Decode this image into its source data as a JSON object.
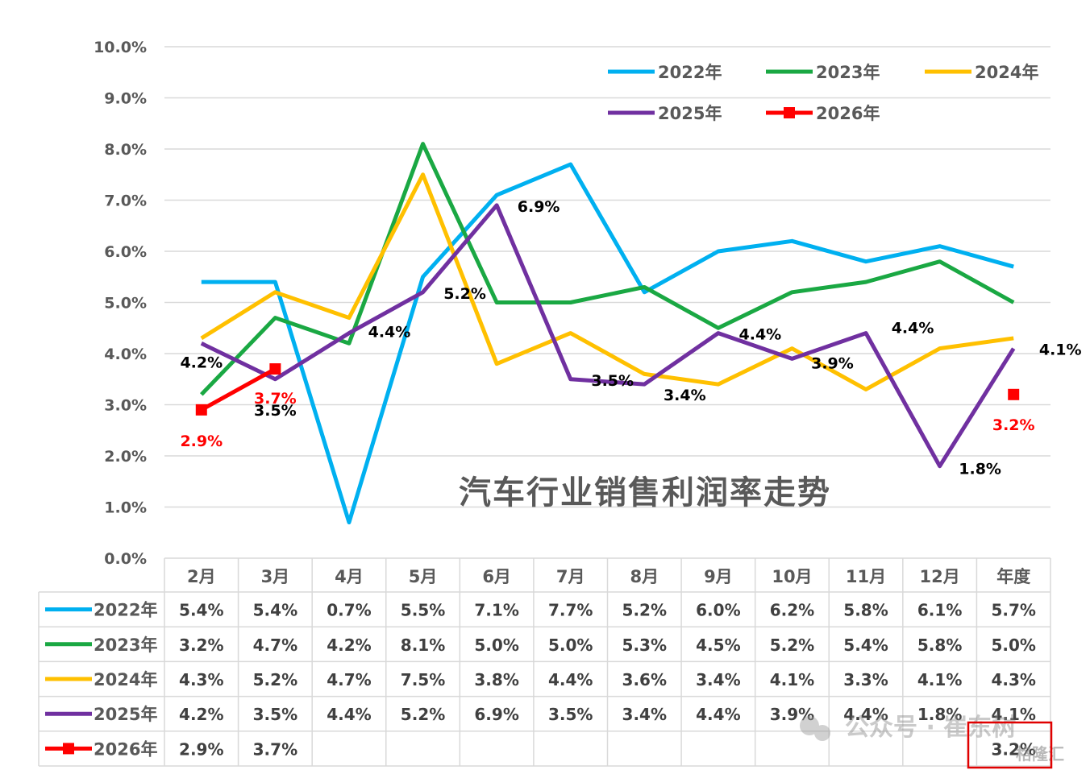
{
  "chart_data": {
    "type": "line",
    "title": "汽车行业销售利润率走势",
    "categories": [
      "2月",
      "3月",
      "4月",
      "5月",
      "6月",
      "7月",
      "8月",
      "9月",
      "10月",
      "11月",
      "12月",
      "年度"
    ],
    "ylim": [
      0,
      10
    ],
    "yticks": [
      "0.0%",
      "1.0%",
      "2.0%",
      "3.0%",
      "4.0%",
      "5.0%",
      "6.0%",
      "7.0%",
      "8.0%",
      "9.0%",
      "10.0%"
    ],
    "grid": true,
    "legend_position": "top-right",
    "series": [
      {
        "name": "2022年",
        "color": "#00B0F0",
        "marker": "none",
        "values": [
          5.4,
          5.4,
          0.7,
          5.5,
          7.1,
          7.7,
          5.2,
          6.0,
          6.2,
          5.8,
          6.1,
          5.7
        ],
        "table": [
          "5.4%",
          "5.4%",
          "0.7%",
          "5.5%",
          "7.1%",
          "7.7%",
          "5.2%",
          "6.0%",
          "6.2%",
          "5.8%",
          "6.1%",
          "5.7%"
        ]
      },
      {
        "name": "2023年",
        "color": "#1AA843",
        "marker": "none",
        "values": [
          3.2,
          4.7,
          4.2,
          8.1,
          5.0,
          5.0,
          5.3,
          4.5,
          5.2,
          5.4,
          5.8,
          5.0
        ],
        "table": [
          "3.2%",
          "4.7%",
          "4.2%",
          "8.1%",
          "5.0%",
          "5.0%",
          "5.3%",
          "4.5%",
          "5.2%",
          "5.4%",
          "5.8%",
          "5.0%"
        ]
      },
      {
        "name": "2024年",
        "color": "#FFC000",
        "marker": "none",
        "values": [
          4.3,
          5.2,
          4.7,
          7.5,
          3.8,
          4.4,
          3.6,
          3.4,
          4.1,
          3.3,
          4.1,
          4.3
        ],
        "table": [
          "4.3%",
          "5.2%",
          "4.7%",
          "7.5%",
          "3.8%",
          "4.4%",
          "3.6%",
          "3.4%",
          "4.1%",
          "3.3%",
          "4.1%",
          "4.3%"
        ]
      },
      {
        "name": "2025年",
        "color": "#7030A0",
        "marker": "none",
        "values": [
          4.2,
          3.5,
          4.4,
          5.2,
          6.9,
          3.5,
          3.4,
          4.4,
          3.9,
          4.4,
          1.8,
          4.1
        ],
        "table": [
          "4.2%",
          "3.5%",
          "4.4%",
          "5.2%",
          "6.9%",
          "3.5%",
          "3.4%",
          "4.4%",
          "3.9%",
          "4.4%",
          "1.8%",
          "4.1%"
        ]
      },
      {
        "name": "2026年",
        "color": "#FF0000",
        "marker": "square",
        "values": [
          2.9,
          3.7,
          null,
          null,
          null,
          null,
          null,
          null,
          null,
          null,
          null,
          3.2
        ],
        "table": [
          "2.9%",
          "3.7%",
          "",
          "",
          "",
          "",
          "",
          "",
          "",
          "",
          "",
          "3.2%"
        ]
      }
    ],
    "data_labels": [
      {
        "series": 3,
        "index": 0,
        "text": "4.2%",
        "color": "#000000"
      },
      {
        "series": 3,
        "index": 1,
        "text": "3.5%",
        "color": "#000000"
      },
      {
        "series": 3,
        "index": 2,
        "text": "4.4%",
        "color": "#000000"
      },
      {
        "series": 3,
        "index": 3,
        "text": "5.2%",
        "color": "#000000"
      },
      {
        "series": 3,
        "index": 4,
        "text": "6.9%",
        "color": "#000000"
      },
      {
        "series": 3,
        "index": 5,
        "text": "3.5%",
        "color": "#000000"
      },
      {
        "series": 3,
        "index": 6,
        "text": "3.4%",
        "color": "#000000"
      },
      {
        "series": 3,
        "index": 7,
        "text": "4.4%",
        "color": "#000000"
      },
      {
        "series": 3,
        "index": 8,
        "text": "3.9%",
        "color": "#000000"
      },
      {
        "series": 3,
        "index": 9,
        "text": "4.4%",
        "color": "#000000"
      },
      {
        "series": 3,
        "index": 10,
        "text": "1.8%",
        "color": "#000000"
      },
      {
        "series": 3,
        "index": 11,
        "text": "4.1%",
        "color": "#000000"
      },
      {
        "series": 4,
        "index": 0,
        "text": "2.9%",
        "color": "#FF0000"
      },
      {
        "series": 4,
        "index": 1,
        "text": "3.7%",
        "color": "#FF0000"
      },
      {
        "series": 4,
        "index": 11,
        "text": "3.2%",
        "color": "#FF0000"
      }
    ],
    "highlight_box_color": "#E00000"
  },
  "watermark": {
    "text": "公众号 · 崔东树",
    "source": "格隆汇"
  }
}
